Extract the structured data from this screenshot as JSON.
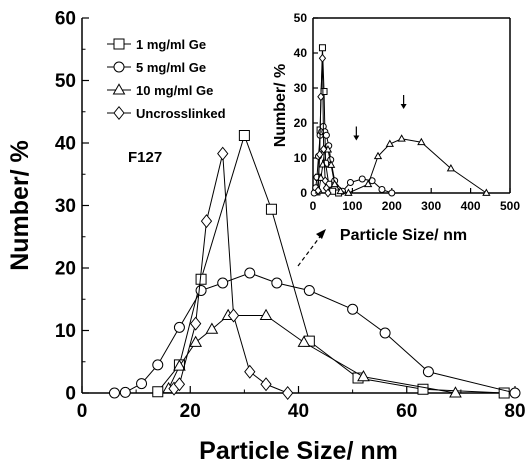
{
  "chart_data": [
    {
      "type": "line",
      "xlabel": "Particle Size/ nm",
      "ylabel": "Number/ %",
      "xlim": [
        0,
        80
      ],
      "ylim": [
        0,
        60
      ],
      "xticks": [
        0,
        20,
        40,
        60,
        80
      ],
      "yticks": [
        0,
        10,
        20,
        30,
        40,
        50,
        60
      ],
      "grid": false,
      "legend_position": "top-left",
      "annotation": "F127",
      "series": [
        {
          "name": "1 mg/ml Ge",
          "marker": "square",
          "points": [
            [
              14,
              0.2
            ],
            [
              18,
              4.5
            ],
            [
              22,
              18.2
            ],
            [
              30,
              41.2
            ],
            [
              35,
              29.4
            ],
            [
              42,
              8.3
            ],
            [
              51,
              2.4
            ],
            [
              63,
              0.6
            ],
            [
              78,
              0
            ]
          ]
        },
        {
          "name": "5 mg/ml Ge",
          "marker": "circle",
          "points": [
            [
              6,
              0
            ],
            [
              8,
              0.1
            ],
            [
              11,
              1.5
            ],
            [
              14,
              4.5
            ],
            [
              18,
              10.5
            ],
            [
              22,
              16.4
            ],
            [
              26,
              17.6
            ],
            [
              31,
              19.2
            ],
            [
              36,
              17.6
            ],
            [
              42,
              16.4
            ],
            [
              50,
              13.4
            ],
            [
              56,
              9.6
            ],
            [
              64,
              3.4
            ],
            [
              80,
              0
            ]
          ]
        },
        {
          "name": "10 mg/ml Ge",
          "marker": "triangle",
          "points": [
            [
              16,
              0.7
            ],
            [
              18,
              4.3
            ],
            [
              21,
              8.1
            ],
            [
              24,
              10.2
            ],
            [
              27,
              12.4
            ],
            [
              34,
              12.4
            ],
            [
              41,
              8.1
            ],
            [
              52,
              2.6
            ],
            [
              69,
              0
            ]
          ]
        },
        {
          "name": "Uncrosslinked",
          "marker": "diamond",
          "points": [
            [
              17,
              0.7
            ],
            [
              18,
              1.4
            ],
            [
              21,
              11.1
            ],
            [
              23,
              27.5
            ],
            [
              26,
              38.3
            ],
            [
              28,
              12.4
            ],
            [
              31,
              3.4
            ],
            [
              34,
              1.4
            ],
            [
              38,
              0
            ]
          ]
        }
      ]
    },
    {
      "type": "line",
      "xlabel": "Particle Size/ nm",
      "ylabel": "Number/ %",
      "xlim": [
        0,
        500
      ],
      "ylim": [
        0,
        50
      ],
      "xticks": [
        0,
        100,
        200,
        300,
        400,
        500
      ],
      "yticks": [
        0,
        10,
        20,
        30,
        40,
        50
      ],
      "grid": false,
      "arrows_at_x": [
        110,
        230
      ],
      "series": [
        {
          "name": "1 mg/ml Ge",
          "marker": "square",
          "points": [
            [
              10,
              0.3
            ],
            [
              14,
              4.5
            ],
            [
              18,
              18
            ],
            [
              24,
              41.5
            ],
            [
              28,
              29
            ],
            [
              32,
              8.5
            ],
            [
              40,
              2.5
            ],
            [
              50,
              0.5
            ],
            [
              65,
              0
            ]
          ]
        },
        {
          "name": "5 mg/ml Ge",
          "marker": "circle",
          "points": [
            [
              3,
              0
            ],
            [
              7,
              1.5
            ],
            [
              10,
              4.5
            ],
            [
              14,
              10.5
            ],
            [
              18,
              16.5
            ],
            [
              22,
              17.5
            ],
            [
              26,
              19
            ],
            [
              30,
              17.5
            ],
            [
              34,
              16.5
            ],
            [
              40,
              13.5
            ],
            [
              45,
              9.5
            ],
            [
              55,
              3.5
            ],
            [
              75,
              0.5
            ],
            [
              95,
              3
            ],
            [
              125,
              4
            ],
            [
              150,
              3.5
            ],
            [
              175,
              1
            ],
            [
              200,
              0
            ]
          ]
        },
        {
          "name": "10 mg/ml Ge",
          "marker": "triangle",
          "points": [
            [
              15,
              0.7
            ],
            [
              20,
              4.3
            ],
            [
              25,
              8.1
            ],
            [
              30,
              12.4
            ],
            [
              38,
              12.4
            ],
            [
              46,
              8
            ],
            [
              55,
              2.5
            ],
            [
              70,
              0.5
            ],
            [
              90,
              0
            ],
            [
              140,
              2.5
            ],
            [
              165,
              10.5
            ],
            [
              195,
              14
            ],
            [
              225,
              15.5
            ],
            [
              275,
              14.5
            ],
            [
              350,
              7
            ],
            [
              440,
              0
            ]
          ]
        },
        {
          "name": "Uncrosslinked",
          "marker": "diamond",
          "points": [
            [
              13,
              0.7
            ],
            [
              17,
              11
            ],
            [
              20,
              27.5
            ],
            [
              24,
              38.5
            ],
            [
              27,
              12.5
            ],
            [
              31,
              3.5
            ],
            [
              34,
              1.4
            ],
            [
              38,
              0
            ]
          ]
        }
      ]
    }
  ]
}
